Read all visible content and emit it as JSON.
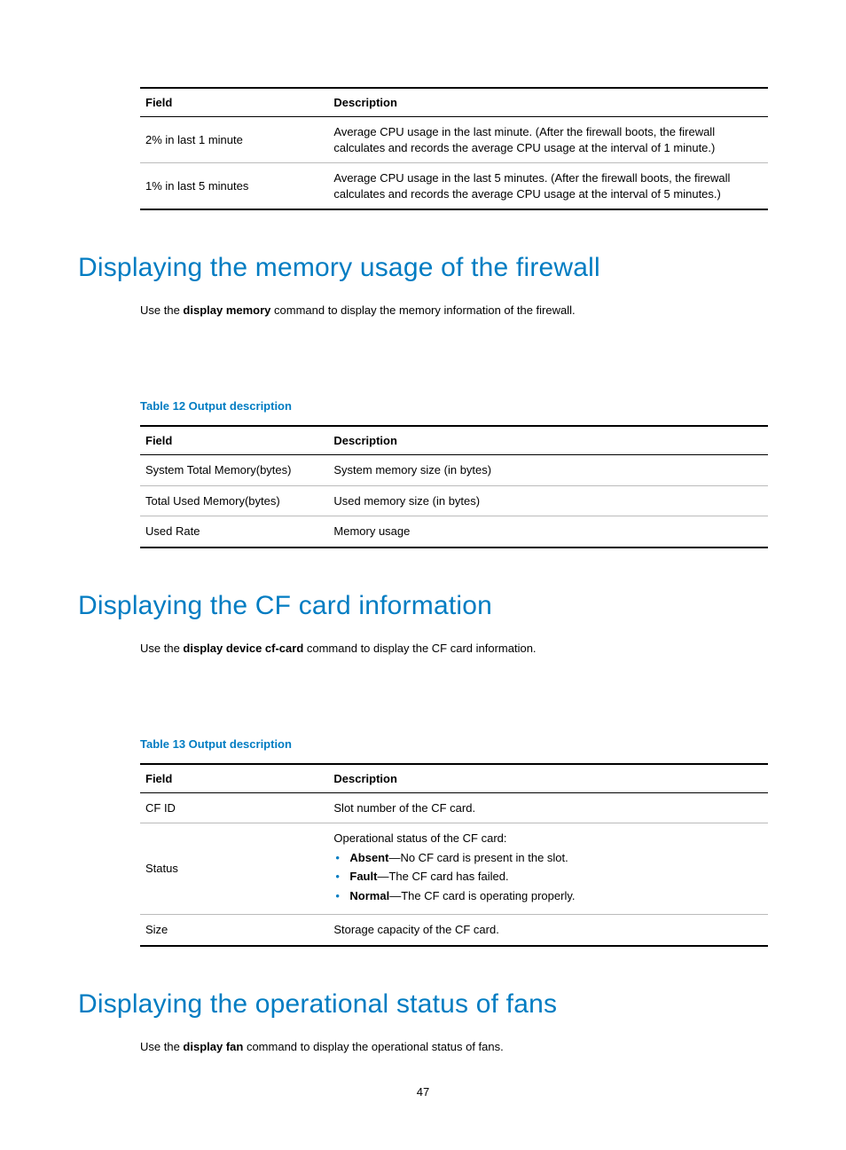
{
  "colors": {
    "accent": "#007cc2",
    "text": "#000000",
    "rule": "#bbbbbb"
  },
  "table1": {
    "headers": {
      "field": "Field",
      "desc": "Description"
    },
    "rows": [
      {
        "field": "2% in last 1 minute",
        "desc": "Average CPU usage in the last minute. (After the firewall boots, the firewall calculates and records the average CPU usage at the interval of 1 minute.)"
      },
      {
        "field": "1% in last 5 minutes",
        "desc": "Average CPU usage in the last 5 minutes. (After the firewall boots, the firewall calculates and records the average CPU usage at the interval of 5 minutes.)"
      }
    ]
  },
  "sectionA": {
    "heading": "Displaying the memory usage of the firewall",
    "intro_pre": "Use the ",
    "intro_cmd": "display memory",
    "intro_post": " command to display the memory information of the firewall.",
    "caption": "Table 12 Output description",
    "headers": {
      "field": "Field",
      "desc": "Description"
    },
    "rows": [
      {
        "field": "System Total Memory(bytes)",
        "desc": "System memory size (in bytes)"
      },
      {
        "field": "Total Used Memory(bytes)",
        "desc": "Used memory size (in bytes)"
      },
      {
        "field": "Used Rate",
        "desc": "Memory usage"
      }
    ]
  },
  "sectionB": {
    "heading": "Displaying the CF card information",
    "intro_pre": "Use the ",
    "intro_cmd": "display device cf-card",
    "intro_post": " command to display the CF card information.",
    "caption": "Table 13 Output description",
    "headers": {
      "field": "Field",
      "desc": "Description"
    },
    "rows": [
      {
        "field": "CF ID",
        "desc": "Slot number of the CF card."
      },
      {
        "field": "Status",
        "desc_lead": "Operational status of the CF card:",
        "bullets": [
          {
            "term": "Absent",
            "rest": "—No CF card is present in the slot."
          },
          {
            "term": "Fault",
            "rest": "—The CF card has failed."
          },
          {
            "term": "Normal",
            "rest": "—The CF card is operating properly."
          }
        ]
      },
      {
        "field": "Size",
        "desc": "Storage capacity of the CF card."
      }
    ]
  },
  "sectionC": {
    "heading": "Displaying the operational status of fans",
    "intro_pre": "Use the ",
    "intro_cmd": "display fan",
    "intro_post": " command to display the operational status of fans."
  },
  "pagenum": "47"
}
